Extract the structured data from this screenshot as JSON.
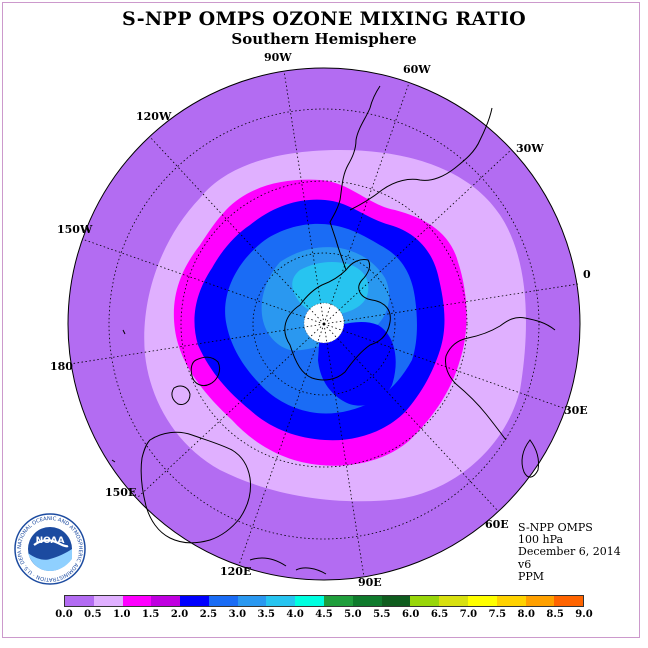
{
  "title": "S-NPP OMPS OZONE MIXING RATIO",
  "subtitle": "Southern Hemisphere",
  "longitude_labels": [
    {
      "name": "90W",
      "text": "90W"
    },
    {
      "name": "60W",
      "text": "60W"
    },
    {
      "name": "30W",
      "text": "30W"
    },
    {
      "name": "0",
      "text": "0"
    },
    {
      "name": "30E",
      "text": "30E"
    },
    {
      "name": "60E",
      "text": "60E"
    },
    {
      "name": "90E",
      "text": "90E"
    },
    {
      "name": "120E",
      "text": "120E"
    },
    {
      "name": "150E",
      "text": "150E"
    },
    {
      "name": "180",
      "text": "180"
    },
    {
      "name": "150W",
      "text": "150W"
    },
    {
      "name": "120W",
      "text": "120W"
    }
  ],
  "info": {
    "instrument": "S-NPP OMPS",
    "level": "100 hPa",
    "date": "December 6, 2014",
    "version": "v6",
    "units": "PPM"
  },
  "logo": {
    "text": "NOAA",
    "ring_text": "NATIONAL OCEANIC AND ATMOSPHERIC ADMINISTRATION · U.S. DEPARTMENT OF COMMERCE"
  },
  "colorbar": {
    "colors": [
      "#b36cf2",
      "#e0b0ff",
      "#ff00ff",
      "#c000e0",
      "#0000ff",
      "#1a6cf5",
      "#2a98f0",
      "#27c4f0",
      "#00ffe0",
      "#1f9e3c",
      "#0f7a2c",
      "#0f5c1e",
      "#98d60a",
      "#d8e010",
      "#ffff00",
      "#ffd200",
      "#ffa000",
      "#ff6400",
      "#ff0000",
      "#8b4a2a"
    ],
    "tick_labels": [
      "0.0",
      "0.5",
      "1.0",
      "1.5",
      "2.0",
      "2.5",
      "3.0",
      "3.5",
      "4.0",
      "4.5",
      "5.0",
      "5.5",
      "6.0",
      "6.5",
      "7.0",
      "7.5",
      "8.0",
      "8.5",
      "9.0"
    ]
  },
  "legend_colors": {
    "background": "#b36cf2",
    "light_violet": "#e0b0ff",
    "magenta": "#ff00ff",
    "blue": "#0000ff",
    "mid_blue": "#1a6cf5",
    "light_blue": "#2a98f0",
    "cyan_blue": "#27c4f0"
  }
}
